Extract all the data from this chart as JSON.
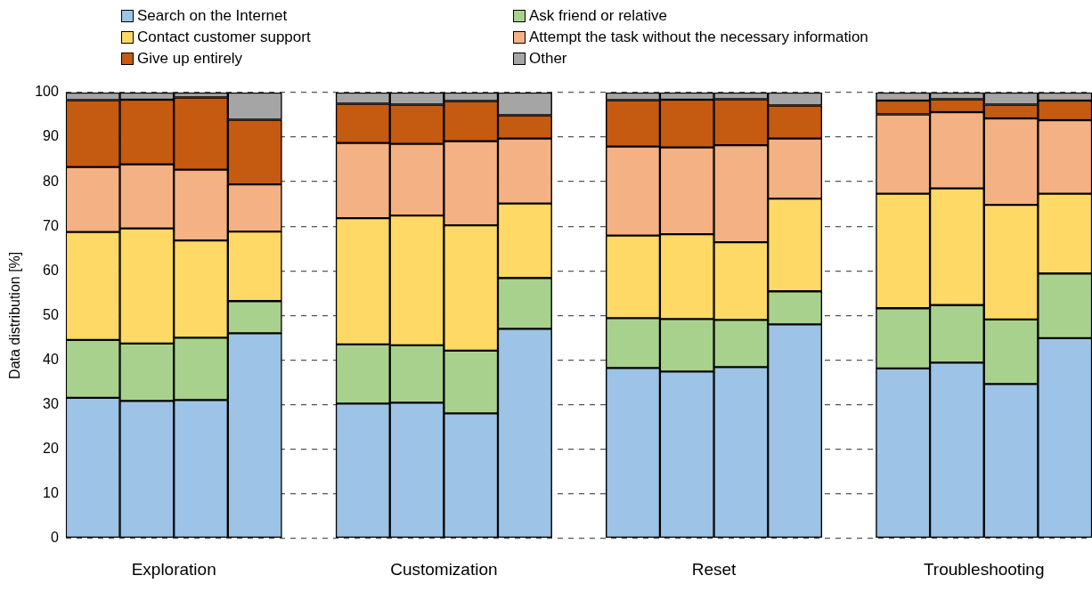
{
  "chart_data": {
    "type": "bar",
    "stacked": true,
    "ylabel": "Data distribution [%]",
    "ylim": [
      0,
      100
    ],
    "yticks": [
      0,
      10,
      20,
      30,
      40,
      50,
      60,
      70,
      80,
      90,
      100
    ],
    "grid": "y",
    "legend": "top",
    "categories": [
      null,
      null,
      null,
      null,
      null,
      null,
      null,
      null,
      null,
      null,
      null,
      null,
      null,
      null,
      null,
      null,
      null,
      null,
      null
    ],
    "annotations": [
      "Exploration",
      "Customization",
      "Reset",
      "Troubleshooting"
    ],
    "series": [
      {
        "name": "Search on the Internet",
        "color": "#9dc3e6",
        "values": [
          31.5,
          30.8,
          31.0,
          46.0,
          null,
          30.2,
          30.4,
          28.0,
          47.0,
          null,
          38.2,
          37.4,
          38.4,
          48.0,
          null,
          38.1,
          39.4,
          34.6,
          44.9
        ]
      },
      {
        "name": "Ask friend or relative",
        "color": "#a9d18e",
        "values": [
          13.0,
          12.9,
          14.0,
          7.2,
          null,
          13.3,
          12.9,
          14.1,
          11.4,
          null,
          11.2,
          11.8,
          10.6,
          7.4,
          null,
          13.5,
          12.9,
          14.5,
          14.5
        ]
      },
      {
        "name": "Contact customer support",
        "color": "#ffd966",
        "values": [
          24.2,
          25.8,
          21.8,
          15.6,
          null,
          28.3,
          29.1,
          28.1,
          16.7,
          null,
          18.5,
          19.0,
          17.4,
          20.8,
          null,
          25.7,
          26.2,
          25.7,
          17.9
        ]
      },
      {
        "name": "Attempt the task without the necessary information",
        "color": "#f4b183",
        "values": [
          14.6,
          14.4,
          15.9,
          10.6,
          null,
          16.9,
          16.1,
          18.9,
          14.6,
          null,
          20.0,
          19.5,
          21.8,
          13.5,
          null,
          17.8,
          17.1,
          19.4,
          16.5
        ]
      },
      {
        "name": "Give up entirely",
        "color": "#c55a11",
        "values": [
          15.0,
          14.5,
          16.2,
          14.5,
          null,
          8.8,
          8.8,
          9.0,
          5.2,
          null,
          10.4,
          10.7,
          10.3,
          7.4,
          null,
          3.1,
          2.9,
          3.1,
          4.4
        ]
      },
      {
        "name": "Other",
        "color": "#a5a5a5",
        "values": [
          1.7,
          1.6,
          1.1,
          6.1,
          null,
          2.5,
          2.7,
          1.9,
          5.1,
          null,
          1.7,
          1.6,
          1.5,
          2.9,
          null,
          1.8,
          1.5,
          2.7,
          1.8
        ]
      }
    ]
  }
}
